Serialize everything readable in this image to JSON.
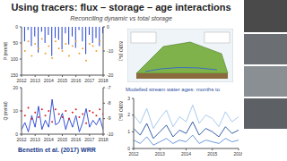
{
  "title": "Using tracers: flux – storage – age interactions",
  "subtitle": "Reconciling dynamic vs total storage",
  "citation": "Benettin et al. (2017) WRR",
  "caption": "Modelled stream water ages: months to",
  "chart_data": [
    {
      "type": "composed",
      "x": [
        2012,
        2012.25,
        2012.5,
        2012.75,
        2013,
        2013.25,
        2013.5,
        2013.75,
        2014,
        2014.25,
        2014.5,
        2014.75,
        2015,
        2015.25,
        2015.5,
        2015.75,
        2016,
        2016.25,
        2016.5,
        2016.75,
        2017,
        2017.25,
        2017.5,
        2017.75,
        2018
      ],
      "xlim": [
        2012,
        2018
      ],
      "xticks": [
        2012,
        2013,
        2014,
        2015,
        2016,
        2017,
        2018
      ],
      "ylim": [
        150,
        0
      ],
      "yticks": [
        0,
        50,
        100,
        150
      ],
      "y2lim": [
        -20,
        0
      ],
      "y2ticks": [
        -20,
        -10,
        0
      ],
      "ylabel": "P (mm/d)",
      "y2label": "δ18O (‰)",
      "series": [
        {
          "type": "bar",
          "color": "#1f3fd1",
          "values": [
            20,
            45,
            10,
            60,
            30,
            80,
            15,
            50,
            25,
            90,
            35,
            40,
            70,
            20,
            55,
            30,
            65,
            10,
            45,
            85,
            25,
            50,
            35,
            60,
            20
          ]
        },
        {
          "type": "scatter",
          "axis": "y2",
          "color": "#f0a030",
          "values": [
            -8,
            -10,
            -6,
            -12,
            -7,
            -9,
            -5,
            -11,
            -8,
            -13,
            -6,
            -9,
            -10,
            -7,
            -12,
            -8,
            -6,
            -11,
            -9,
            -14,
            -7,
            -8,
            -10,
            -6,
            -9
          ]
        }
      ]
    },
    {
      "type": "composed",
      "x": [
        2012,
        2012.25,
        2012.5,
        2012.75,
        2013,
        2013.25,
        2013.5,
        2013.75,
        2014,
        2014.25,
        2014.5,
        2014.75,
        2015,
        2015.25,
        2015.5,
        2015.75,
        2016,
        2016.25,
        2016.5,
        2016.75,
        2017,
        2017.25,
        2017.5,
        2017.75,
        2018
      ],
      "xlim": [
        2012,
        2018
      ],
      "xticks": [
        2012,
        2013,
        2014,
        2015,
        2016,
        2017,
        2018
      ],
      "ylim": [
        0,
        20
      ],
      "yticks": [
        0,
        10,
        20
      ],
      "y2lim": [
        -10,
        -7
      ],
      "y2ticks": [
        -10,
        -9,
        -8,
        -7
      ],
      "ylabel": "Q (mm/d)",
      "y2label": "δ18O (‰)",
      "series": [
        {
          "type": "line",
          "color": "#1f3fd1",
          "values": [
            2,
            5,
            1,
            8,
            3,
            12,
            2,
            6,
            3,
            15,
            4,
            5,
            9,
            2,
            7,
            3,
            8,
            1,
            5,
            11,
            3,
            6,
            4,
            7,
            2
          ]
        },
        {
          "type": "scatter",
          "axis": "y2",
          "color": "#d62020",
          "values": [
            -8.5,
            -8.8,
            -8.3,
            -9,
            -8.6,
            -8.9,
            -8.4,
            -8.8,
            -8.5,
            -9.2,
            -8.4,
            -8.7,
            -8.9,
            -8.5,
            -9,
            -8.6,
            -8.4,
            -8.9,
            -8.7,
            -9.3,
            -8.5,
            -8.6,
            -8.8,
            -8.4,
            -8.7
          ]
        }
      ]
    },
    {
      "type": "line",
      "x": [
        2012,
        2012.25,
        2012.5,
        2012.75,
        2013,
        2013.25,
        2013.5,
        2013.75,
        2014,
        2014.25,
        2014.5,
        2014.75,
        2015,
        2015.25,
        2015.5,
        2015.75,
        2016
      ],
      "xlim": [
        2012,
        2016
      ],
      "xticks": [
        2012,
        2013,
        2014,
        2015,
        2016
      ],
      "ylim": [
        0,
        3
      ],
      "yticks": [
        0,
        1,
        2,
        3
      ],
      "series": [
        {
          "type": "line",
          "color": "#9ec5ec",
          "values": [
            2.0,
            1.5,
            2.4,
            1.2,
            1.8,
            2.3,
            1.3,
            1.9,
            1.6,
            2.6,
            1.5,
            2.0,
            1.8,
            1.3,
            2.2,
            1.6,
            1.9
          ]
        },
        {
          "type": "line",
          "color": "#1f4e9e",
          "values": [
            1.2,
            0.8,
            1.5,
            0.6,
            1.0,
            1.4,
            0.7,
            1.1,
            0.9,
            1.6,
            0.8,
            1.2,
            1.0,
            0.7,
            1.3,
            0.9,
            1.1
          ]
        },
        {
          "type": "line",
          "color": "#5b8fd6",
          "values": [
            0.5,
            0.3,
            0.7,
            0.2,
            0.4,
            0.6,
            0.3,
            0.5,
            0.4,
            0.8,
            0.3,
            0.5,
            0.4,
            0.3,
            0.6,
            0.4,
            0.5
          ]
        }
      ]
    }
  ]
}
